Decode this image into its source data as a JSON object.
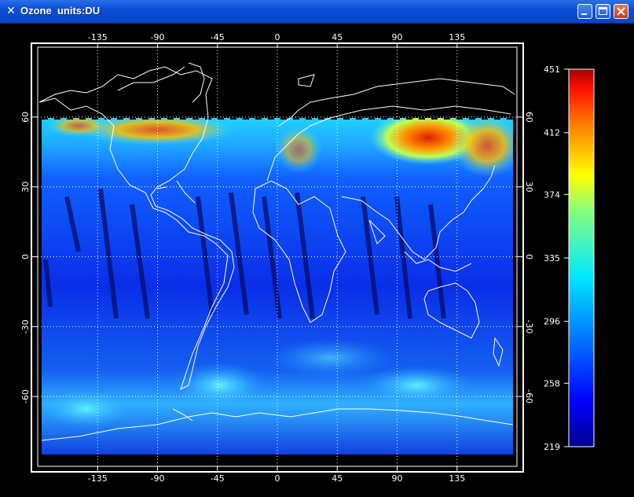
{
  "window": {
    "title": "Ozone  units:DU",
    "icon": "x-icon",
    "controls": [
      "minimize-icon",
      "maximize-icon",
      "close-icon"
    ]
  },
  "chart_data": {
    "type": "heatmap",
    "title": "",
    "xlabel": "",
    "ylabel": "",
    "x_ticks": [
      "-135",
      "-90",
      "-45",
      "0",
      "45",
      "90",
      "135"
    ],
    "x_tick_values": [
      -135,
      -90,
      -45,
      0,
      45,
      90,
      135
    ],
    "y_ticks": [
      "60",
      "30",
      "0",
      "-30",
      "-60"
    ],
    "y_tick_values": [
      60,
      30,
      0,
      -30,
      -60
    ],
    "right_y_ticks": [
      "60",
      "30",
      "0",
      "-30",
      "-60"
    ],
    "xlim": [
      -180,
      180
    ],
    "ylim": [
      -90,
      90
    ],
    "grid": true,
    "colorbar": {
      "ticks": [
        "451",
        "412",
        "374",
        "335",
        "296",
        "258",
        "219"
      ],
      "tick_values": [
        451,
        412,
        374,
        335,
        296,
        258,
        219
      ],
      "range": [
        219,
        451
      ],
      "placement": "right"
    },
    "colors": {
      "low": "#00008c",
      "mid_low": "#0040ff",
      "mid": "#00e0ff",
      "mid_high": "#ffff00",
      "high": "#ff3000",
      "max": "#a00000",
      "coastline": "#ffffff",
      "grid": "#ffffff"
    }
  }
}
